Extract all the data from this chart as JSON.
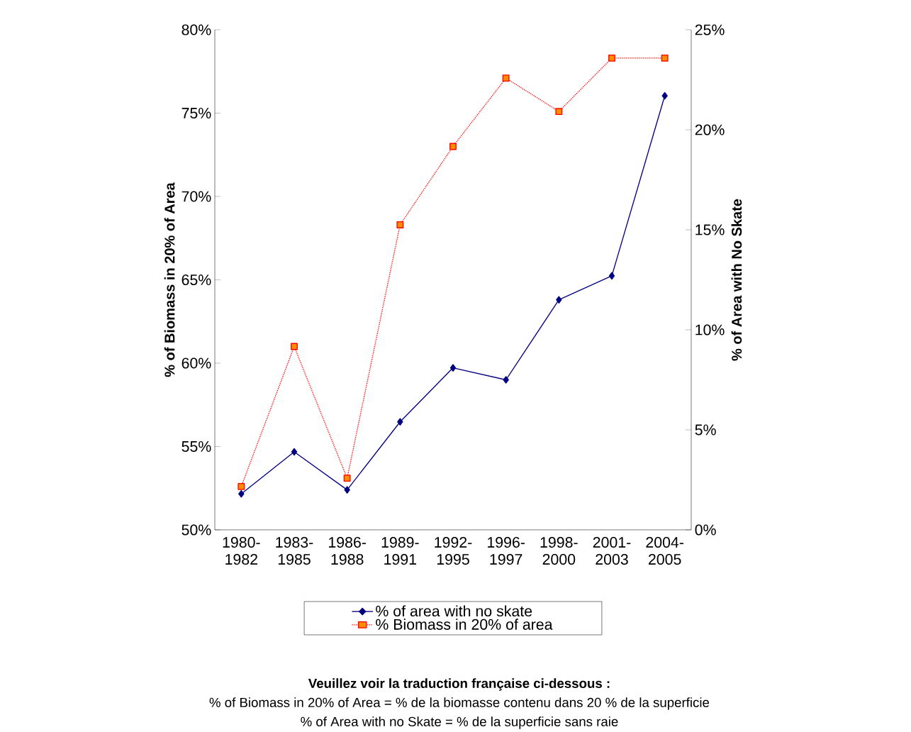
{
  "chart_data": {
    "type": "line",
    "categories": [
      "1980- 1982",
      "1983- 1985",
      "1986- 1988",
      "1989- 1991",
      "1992- 1995",
      "1996- 1997",
      "1998- 2000",
      "2001- 2003",
      "2004- 2005"
    ],
    "series": [
      {
        "name": "% of area with no skate",
        "color": "#000080",
        "axis": "y2",
        "marker": "diamond",
        "line_style": "solid",
        "values": [
          1.8,
          3.9,
          2.0,
          5.4,
          8.1,
          7.5,
          11.5,
          12.7,
          21.7
        ]
      },
      {
        "name": "% Biomass in 20% of area",
        "color": "#ff0000",
        "axis": "y",
        "marker": "square",
        "line_style": "dotted",
        "values": [
          52.6,
          61.0,
          53.1,
          68.3,
          73.0,
          77.1,
          75.1,
          78.3,
          78.3
        ]
      }
    ],
    "ylabel": "% of Biomass in 20% of Area",
    "y2label": "% of Area with No Skate",
    "ylim": [
      50,
      80
    ],
    "yticks": [
      {
        "value": 50,
        "label": "50%"
      },
      {
        "value": 55,
        "label": "55%"
      },
      {
        "value": 60,
        "label": "60%"
      },
      {
        "value": 65,
        "label": "65%"
      },
      {
        "value": 70,
        "label": "70%"
      },
      {
        "value": 75,
        "label": "75%"
      },
      {
        "value": 80,
        "label": "80%"
      }
    ],
    "y2lim": [
      0,
      25
    ],
    "y2ticks": [
      {
        "value": 0,
        "label": "0%"
      },
      {
        "value": 5,
        "label": "5%"
      },
      {
        "value": 10,
        "label": "10%"
      },
      {
        "value": 15,
        "label": "15%"
      },
      {
        "value": 20,
        "label": "20%"
      },
      {
        "value": 25,
        "label": "25%"
      }
    ],
    "legend": "bottom",
    "grid": false,
    "annotations": [
      "Veuillez voir la traduction française ci-dessous :",
      "% of Biomass in 20% of Area = % de la biomasse contenu dans 20 % de la superficie",
      "% of Area with no Skate = % de la superficie sans raie"
    ]
  }
}
